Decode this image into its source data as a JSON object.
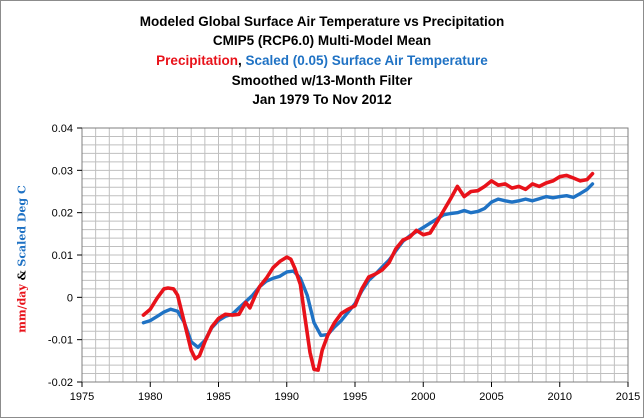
{
  "title": {
    "line1": "Modeled Global Surface Air Temperature vs Precipitation",
    "line2": "CMIP5 (RCP6.0) Multi-Model Mean",
    "line3_part1": "Precipitation",
    "line3_part2": ", ",
    "line3_part3": "Scaled  (0.05) Surface Air Temperature",
    "line4": "Smoothed w/13-Month Filter",
    "line5": "Jan 1979 To Nov 2012"
  },
  "ylabel": {
    "part1": "mm/day",
    "part2": " & ",
    "part3": "Scaled Deg C"
  },
  "colors": {
    "precipitation": "#e8121a",
    "temperature": "#1f72c4",
    "grid": "#bfbfbf",
    "axis": "#000000"
  },
  "chart_data": {
    "type": "line",
    "title": "Modeled Global Surface Air Temperature vs Precipitation",
    "xlim": [
      1975,
      2015
    ],
    "ylim": [
      -0.02,
      0.04
    ],
    "xticks": [
      1975,
      1980,
      1985,
      1990,
      1995,
      2000,
      2005,
      2010,
      2015
    ],
    "xtick_labels": [
      "1975",
      "1980",
      "1985",
      "1990",
      "1995",
      "2000",
      "2005",
      "2010",
      "2015"
    ],
    "yticks": [
      -0.02,
      -0.01,
      0,
      0.01,
      0.02,
      0.03,
      0.04
    ],
    "ytick_labels": [
      "-0.02",
      "-0.01",
      "0",
      "0.01",
      "0.02",
      "0.03",
      "0.04"
    ],
    "grid": true,
    "series": [
      {
        "name": "Precipitation",
        "color": "#e8121a",
        "x": [
          1979.5,
          1980.0,
          1980.5,
          1981.0,
          1981.3,
          1981.7,
          1982.0,
          1982.5,
          1983.0,
          1983.3,
          1983.6,
          1984.0,
          1984.5,
          1985.0,
          1985.5,
          1986.0,
          1986.5,
          1987.0,
          1987.3,
          1987.7,
          1988.0,
          1988.5,
          1989.0,
          1989.5,
          1990.0,
          1990.3,
          1990.6,
          1991.0,
          1991.3,
          1991.7,
          1992.0,
          1992.3,
          1992.6,
          1993.0,
          1993.5,
          1994.0,
          1994.5,
          1995.0,
          1995.5,
          1996.0,
          1996.5,
          1997.0,
          1997.5,
          1998.0,
          1998.5,
          1999.0,
          1999.5,
          2000.0,
          2000.5,
          2001.0,
          2001.5,
          2002.0,
          2002.5,
          2003.0,
          2003.5,
          2004.0,
          2004.5,
          2005.0,
          2005.5,
          2006.0,
          2006.5,
          2007.0,
          2007.5,
          2008.0,
          2008.5,
          2009.0,
          2009.5,
          2010.0,
          2010.5,
          2011.0,
          2011.5,
          2012.0,
          2012.4
        ],
        "y": [
          -0.0042,
          -0.0028,
          -0.0002,
          0.002,
          0.0022,
          0.002,
          0.0005,
          -0.006,
          -0.0125,
          -0.0145,
          -0.0138,
          -0.0105,
          -0.007,
          -0.005,
          -0.004,
          -0.0042,
          -0.004,
          -0.0012,
          -0.0025,
          0.0005,
          0.0025,
          0.0045,
          0.007,
          0.0085,
          0.0095,
          0.009,
          0.0068,
          0.003,
          -0.004,
          -0.013,
          -0.017,
          -0.0172,
          -0.0125,
          -0.009,
          -0.006,
          -0.0038,
          -0.0028,
          -0.002,
          0.002,
          0.0048,
          0.0055,
          0.0065,
          0.0082,
          0.0115,
          0.0135,
          0.0142,
          0.0158,
          0.0148,
          0.0152,
          0.0178,
          0.0205,
          0.0233,
          0.0262,
          0.0238,
          0.025,
          0.0252,
          0.0262,
          0.0275,
          0.0265,
          0.0268,
          0.0258,
          0.0262,
          0.0255,
          0.0268,
          0.0262,
          0.027,
          0.0275,
          0.0285,
          0.0288,
          0.0282,
          0.0275,
          0.0278,
          0.0292
        ]
      },
      {
        "name": "Scaled  (0.05) Surface Air Temperature",
        "color": "#1f72c4",
        "x": [
          1979.5,
          1980.0,
          1980.5,
          1981.0,
          1981.5,
          1982.0,
          1982.5,
          1983.0,
          1983.5,
          1984.0,
          1984.5,
          1985.0,
          1985.5,
          1986.0,
          1986.5,
          1987.0,
          1987.5,
          1988.0,
          1988.5,
          1989.0,
          1989.5,
          1990.0,
          1990.5,
          1991.0,
          1991.5,
          1992.0,
          1992.5,
          1993.0,
          1993.5,
          1994.0,
          1994.5,
          1995.0,
          1995.5,
          1996.0,
          1996.5,
          1997.0,
          1997.5,
          1998.0,
          1998.5,
          1999.0,
          1999.5,
          2000.0,
          2000.5,
          2001.0,
          2001.5,
          2002.0,
          2002.5,
          2003.0,
          2003.5,
          2004.0,
          2004.5,
          2005.0,
          2005.5,
          2006.0,
          2006.5,
          2007.0,
          2007.5,
          2008.0,
          2008.5,
          2009.0,
          2009.5,
          2010.0,
          2010.5,
          2011.0,
          2011.5,
          2012.0,
          2012.4
        ],
        "y": [
          -0.006,
          -0.0055,
          -0.0045,
          -0.0035,
          -0.0028,
          -0.0033,
          -0.006,
          -0.0105,
          -0.0118,
          -0.0102,
          -0.0072,
          -0.0055,
          -0.0045,
          -0.004,
          -0.0025,
          -0.001,
          0.0005,
          0.0025,
          0.0038,
          0.0045,
          0.005,
          0.006,
          0.0062,
          0.0045,
          0.0005,
          -0.006,
          -0.009,
          -0.0088,
          -0.007,
          -0.0055,
          -0.0035,
          -0.0015,
          0.0015,
          0.004,
          0.0055,
          0.0072,
          0.0088,
          0.011,
          0.0132,
          0.0145,
          0.0155,
          0.0165,
          0.0175,
          0.0185,
          0.0195,
          0.0198,
          0.02,
          0.0205,
          0.02,
          0.0203,
          0.021,
          0.0225,
          0.0232,
          0.0228,
          0.0225,
          0.0228,
          0.0232,
          0.0228,
          0.0233,
          0.0238,
          0.0235,
          0.0238,
          0.024,
          0.0236,
          0.0245,
          0.0255,
          0.0268
        ]
      }
    ]
  }
}
